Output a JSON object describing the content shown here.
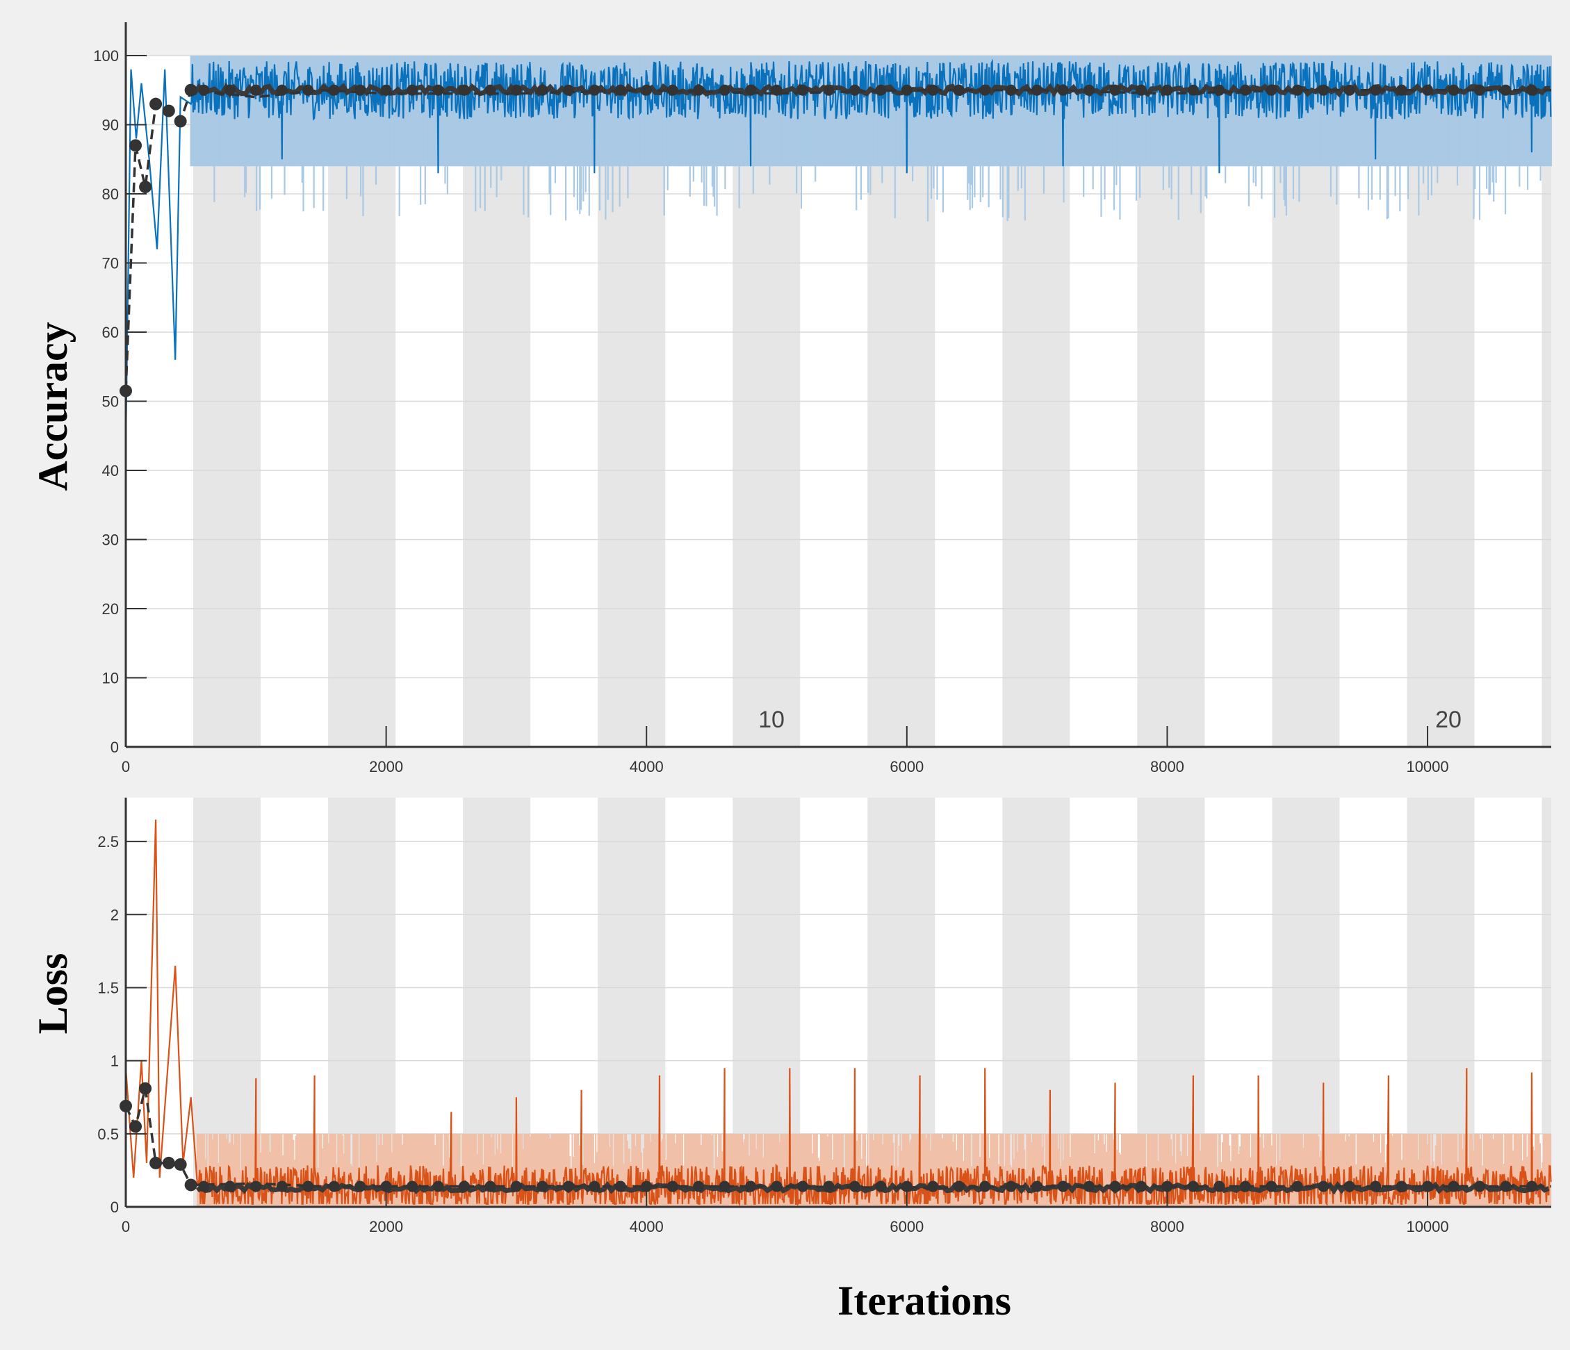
{
  "chart_data": [
    {
      "type": "line",
      "title": "",
      "ylabel": "Accuracy",
      "xlabel": "",
      "xlim": [
        0,
        10950
      ],
      "ylim": [
        0,
        100
      ],
      "xticks": [
        0,
        2000,
        4000,
        6000,
        8000,
        10000
      ],
      "xtick_labels": [
        "0",
        "2000",
        "4000",
        "6000",
        "8000",
        "10000"
      ],
      "yticks": [
        0,
        10,
        20,
        30,
        40,
        50,
        60,
        70,
        80,
        90,
        100
      ],
      "ytick_labels": [
        "0",
        "10",
        "20",
        "30",
        "40",
        "50",
        "60",
        "70",
        "80",
        "90",
        "100"
      ],
      "epoch_labels": [
        {
          "x": 4800,
          "text": "10"
        },
        {
          "x": 10000,
          "text": "20"
        }
      ],
      "epoch_band_width": 518,
      "grid": true,
      "colors": {
        "raw": "#0a72bd",
        "smooth_band": "#a9c9e4",
        "validation": "#333333"
      },
      "series": [
        {
          "role": "training-raw",
          "pattern": "noisy",
          "start_points": [
            [
              0,
              44
            ],
            [
              40,
              98
            ],
            [
              80,
              88
            ],
            [
              120,
              96
            ],
            [
              180,
              85
            ],
            [
              240,
              72
            ],
            [
              300,
              98
            ],
            [
              380,
              56
            ],
            [
              420,
              94
            ],
            [
              500,
              93
            ]
          ],
          "steady_mean": 95,
          "steady_spread": 6,
          "dips": [
            [
              1200,
              85
            ],
            [
              2400,
              83
            ],
            [
              3600,
              83
            ],
            [
              4800,
              84
            ],
            [
              6000,
              83
            ],
            [
              7200,
              84
            ],
            [
              8400,
              83
            ],
            [
              9600,
              85
            ],
            [
              10800,
              86
            ]
          ]
        },
        {
          "role": "training-smoothed-range",
          "pattern": "band",
          "upper": 100,
          "lower": 84,
          "spikes_low": 76
        },
        {
          "role": "validation",
          "points": [
            [
              0,
              51.5
            ],
            [
              75,
              87
            ],
            [
              150,
              81
            ],
            [
              230,
              93
            ],
            [
              330,
              92
            ],
            [
              420,
              90.5
            ],
            [
              500,
              95
            ],
            [
              1000,
              94
            ],
            [
              1500,
              95
            ],
            [
              2000,
              94.5
            ],
            [
              3000,
              94.5
            ],
            [
              4000,
              95
            ],
            [
              5000,
              94.5
            ],
            [
              6000,
              95
            ],
            [
              7000,
              95
            ],
            [
              8000,
              94.5
            ],
            [
              9000,
              95
            ],
            [
              10000,
              95
            ],
            [
              10950,
              95
            ]
          ]
        }
      ]
    },
    {
      "type": "line",
      "title": "",
      "ylabel": "Loss",
      "xlabel": "Iterations",
      "xlim": [
        0,
        10950
      ],
      "ylim": [
        0,
        2.8
      ],
      "xticks": [
        0,
        2000,
        4000,
        6000,
        8000,
        10000
      ],
      "xtick_labels": [
        "0",
        "2000",
        "4000",
        "6000",
        "8000",
        "10000"
      ],
      "yticks": [
        0,
        0.5,
        1,
        1.5,
        2,
        2.5
      ],
      "ytick_labels": [
        "0",
        "0.5",
        "1",
        "1.5",
        "2",
        "2.5"
      ],
      "epoch_band_width": 518,
      "grid": true,
      "colors": {
        "raw": "#d95319",
        "smooth_band": "#f0c0a8",
        "validation": "#333333"
      },
      "series": [
        {
          "role": "training-raw",
          "pattern": "noisy",
          "start_points": [
            [
              0,
              0.95
            ],
            [
              60,
              0.2
            ],
            [
              120,
              1.0
            ],
            [
              160,
              0.3
            ],
            [
              230,
              2.65
            ],
            [
              260,
              0.2
            ],
            [
              380,
              1.65
            ],
            [
              440,
              0.3
            ],
            [
              500,
              0.75
            ],
            [
              550,
              0.15
            ]
          ],
          "steady_mean": 0.13,
          "steady_spread": 0.22,
          "spikes": [
            [
              1000,
              0.88
            ],
            [
              1450,
              0.9
            ],
            [
              2500,
              0.65
            ],
            [
              3000,
              0.75
            ],
            [
              3500,
              0.8
            ],
            [
              4100,
              0.9
            ],
            [
              4600,
              0.95
            ],
            [
              5100,
              0.95
            ],
            [
              5600,
              0.95
            ],
            [
              6100,
              0.9
            ],
            [
              6600,
              0.95
            ],
            [
              7100,
              0.8
            ],
            [
              7600,
              0.85
            ],
            [
              8200,
              0.9
            ],
            [
              8700,
              0.9
            ],
            [
              9200,
              0.85
            ],
            [
              9700,
              0.9
            ],
            [
              10300,
              0.95
            ],
            [
              10800,
              0.92
            ]
          ]
        },
        {
          "role": "training-smoothed-range",
          "pattern": "band",
          "upper": 0.5,
          "lower": 0.0
        },
        {
          "role": "validation",
          "points": [
            [
              0,
              0.69
            ],
            [
              75,
              0.55
            ],
            [
              150,
              0.81
            ],
            [
              230,
              0.3
            ],
            [
              330,
              0.3
            ],
            [
              420,
              0.29
            ],
            [
              500,
              0.15
            ],
            [
              1000,
              0.16
            ],
            [
              1500,
              0.14
            ],
            [
              2000,
              0.14
            ],
            [
              3000,
              0.14
            ],
            [
              4000,
              0.14
            ],
            [
              5000,
              0.14
            ],
            [
              6000,
              0.13
            ],
            [
              7000,
              0.14
            ],
            [
              8000,
              0.14
            ],
            [
              9000,
              0.14
            ],
            [
              10000,
              0.14
            ],
            [
              10950,
              0.14
            ]
          ]
        }
      ]
    }
  ],
  "labels": {
    "accuracy": "Accuracy",
    "loss": "Loss",
    "iterations": "Iterations"
  }
}
